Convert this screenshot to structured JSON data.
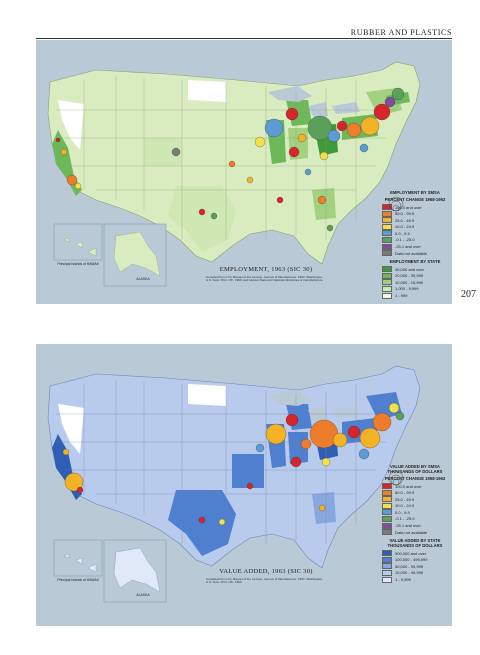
{
  "header": {
    "title": "RUBBER AND PLASTICS"
  },
  "page_number": "207",
  "map_top": {
    "title": "EMPLOYMENT, 1963 (SIC 30)",
    "credit": "Compiled from U.S. Bureau of the Census, Census of Manufactures: 1963. Washington, U.S. Govt. Print. Off., 1966; and various State and National directories of manufacturers.",
    "inset_hawaii": "Principal Islands of HAWAII",
    "inset_alaska": "ALASKA",
    "legend_smsa_title": "EMPLOYMENT BY SMSA",
    "legend_change_title": "PERCENT CHANGE 1958-1963",
    "legend_change": [
      {
        "label": "100.0 and over",
        "color": "#d7262b"
      },
      {
        "label": "50.0 - 99.9",
        "color": "#ee7d2b"
      },
      {
        "label": "25.0 - 49.9",
        "color": "#f4b326"
      },
      {
        "label": "10.0 - 24.9",
        "color": "#f1e04a"
      },
      {
        "label": "0.0 - 9.9",
        "color": "#5c9bd4"
      },
      {
        "label": "-0.1 - -25.0",
        "color": "#5aa05a"
      },
      {
        "label": "-25.1 and over",
        "color": "#7f4d9c"
      },
      {
        "label": "Data not available",
        "color": "#7a7a7a"
      }
    ],
    "legend_state_title": "EMPLOYMENT BY STATE",
    "legend_state": [
      {
        "label": "40,000 and over",
        "color": "#3f9a3c"
      },
      {
        "label": "20,000 - 39,999",
        "color": "#6db95a"
      },
      {
        "label": "10,000 - 19,999",
        "color": "#a3d17f"
      },
      {
        "label": "1,000 - 9,999",
        "color": "#cfe8b3"
      },
      {
        "label": "1 - 999",
        "color": "#eef6e1"
      }
    ]
  },
  "map_bottom": {
    "title": "VALUE ADDED, 1963 (SIC 30)",
    "credit": "Compiled from U.S. Bureau of the Census, Census of Manufactures: 1963. Washington, U.S. Govt. Print. Off., 1966.",
    "inset_hawaii": "Principal Islands of HAWAII",
    "inset_alaska": "ALASKA",
    "legend_smsa_title": "VALUE ADDED BY SMSA THOUSANDS OF DOLLARS",
    "legend_change_title": "PERCENT CHANGE 1958-1963",
    "legend_state_title": "VALUE ADDED BY STATE THOUSANDS OF DOLLARS",
    "legend_state": [
      {
        "label": "500,000 and over",
        "color": "#2f5fb4"
      },
      {
        "label": "100,000 - 499,999",
        "color": "#4f7fcf"
      },
      {
        "label": "50,000 - 99,999",
        "color": "#87a8df"
      },
      {
        "label": "10,000 - 49,999",
        "color": "#b8cbec"
      },
      {
        "label": "1 - 9,999",
        "color": "#e0e9f7"
      }
    ]
  }
}
